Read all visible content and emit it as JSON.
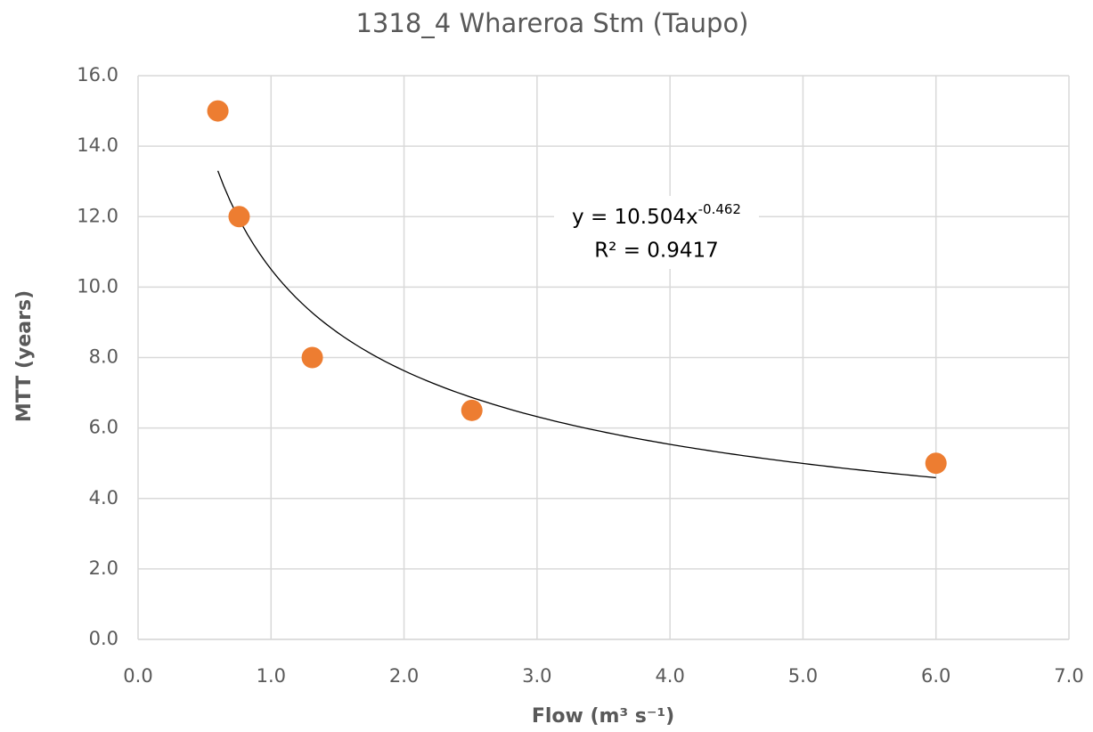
{
  "chart_data": {
    "type": "scatter",
    "title": "1318_4 Whareroa Stm (Taupo)",
    "x_label": "Flow (m³ s⁻¹)",
    "y_label": "MTT (years)",
    "series": [
      {
        "name": "MTT",
        "color": "#ed7d31",
        "x": [
          0.6,
          0.76,
          1.31,
          2.51,
          6.0
        ],
        "values": [
          15.0,
          12.0,
          8.0,
          6.5,
          5.0
        ]
      }
    ],
    "trendline": {
      "type": "power",
      "coefficient": 10.504,
      "exponent": -0.462,
      "x_range": [
        0.6,
        6.0
      ],
      "color": "#000000",
      "equation_label": "y = 10.504x",
      "equation_superscript": "-0.462",
      "r2_label": "R² = 0.9417"
    },
    "xlim": [
      0,
      7
    ],
    "ylim": [
      0,
      16
    ],
    "xticks": [
      {
        "value": 0,
        "label": "0.0"
      },
      {
        "value": 1,
        "label": "1.0"
      },
      {
        "value": 2,
        "label": "2.0"
      },
      {
        "value": 3,
        "label": "3.0"
      },
      {
        "value": 4,
        "label": "4.0"
      },
      {
        "value": 5,
        "label": "5.0"
      },
      {
        "value": 6,
        "label": "6.0"
      },
      {
        "value": 7,
        "label": "7.0"
      }
    ],
    "yticks": [
      {
        "value": 0,
        "label": "0.0"
      },
      {
        "value": 2,
        "label": "2.0"
      },
      {
        "value": 4,
        "label": "4.0"
      },
      {
        "value": 6,
        "label": "6.0"
      },
      {
        "value": 8,
        "label": "8.0"
      },
      {
        "value": 10,
        "label": "10.0"
      },
      {
        "value": 12,
        "label": "12.0"
      },
      {
        "value": 14,
        "label": "14.0"
      },
      {
        "value": 16,
        "label": "16.0"
      }
    ],
    "grid": true
  }
}
